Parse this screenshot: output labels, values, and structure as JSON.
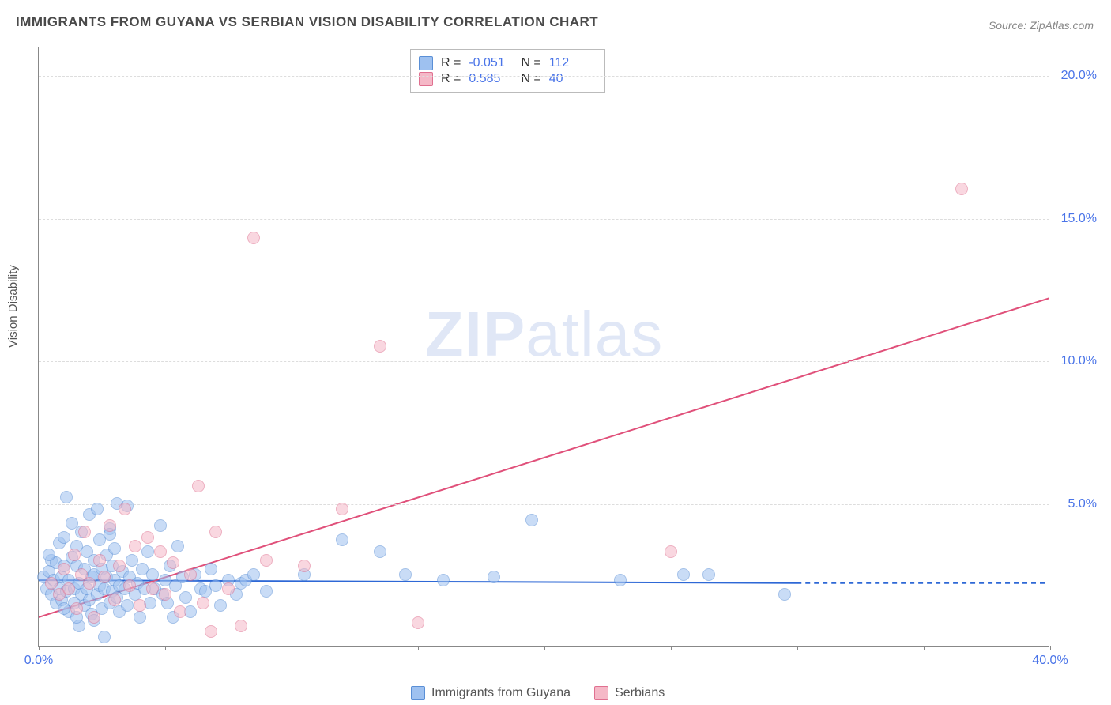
{
  "title": "IMMIGRANTS FROM GUYANA VS SERBIAN VISION DISABILITY CORRELATION CHART",
  "source_label": "Source: ",
  "source_name": "ZipAtlas.com",
  "ylabel": "Vision Disability",
  "watermark_bold": "ZIP",
  "watermark_thin": "atlas",
  "chart": {
    "type": "scatter",
    "background_color": "#ffffff",
    "grid_color": "#dddddd",
    "axis_color": "#888888",
    "value_color": "#4a74e8",
    "xlim": [
      0,
      40
    ],
    "ylim": [
      0,
      21
    ],
    "ytick_positions": [
      5,
      10,
      15,
      20
    ],
    "ytick_labels": [
      "5.0%",
      "10.0%",
      "15.0%",
      "20.0%"
    ],
    "xtick_positions": [
      0,
      5,
      10,
      15,
      20,
      25,
      30,
      35,
      40
    ],
    "xtick_labels_shown": {
      "0": "0.0%",
      "40": "40.0%"
    },
    "marker_radius": 8,
    "marker_opacity": 0.55,
    "series": [
      {
        "key": "guyana",
        "label": "Immigrants from Guyana",
        "fill": "#9ec1f0",
        "stroke": "#5a8fd6",
        "R": "-0.051",
        "N": "112",
        "trend": {
          "x1": 0,
          "y1": 2.3,
          "x2": 30,
          "y2": 2.2,
          "dash_after": 30,
          "x3": 40,
          "y3": 2.2,
          "color": "#2e68d6",
          "width": 2
        },
        "points": [
          [
            0.2,
            2.4
          ],
          [
            0.3,
            2.0
          ],
          [
            0.4,
            2.6
          ],
          [
            0.5,
            1.8
          ],
          [
            0.5,
            3.0
          ],
          [
            0.6,
            2.3
          ],
          [
            0.7,
            2.9
          ],
          [
            0.7,
            1.5
          ],
          [
            0.8,
            3.6
          ],
          [
            0.8,
            2.0
          ],
          [
            0.9,
            2.4
          ],
          [
            0.9,
            1.6
          ],
          [
            1.0,
            2.8
          ],
          [
            1.0,
            3.8
          ],
          [
            1.1,
            1.9
          ],
          [
            1.1,
            5.2
          ],
          [
            1.2,
            2.3
          ],
          [
            1.2,
            1.2
          ],
          [
            1.3,
            3.1
          ],
          [
            1.3,
            4.3
          ],
          [
            1.4,
            2.0
          ],
          [
            1.4,
            1.5
          ],
          [
            1.5,
            2.8
          ],
          [
            1.5,
            3.5
          ],
          [
            1.6,
            2.2
          ],
          [
            1.6,
            0.7
          ],
          [
            1.7,
            1.8
          ],
          [
            1.7,
            4.0
          ],
          [
            1.8,
            1.4
          ],
          [
            1.8,
            2.7
          ],
          [
            1.9,
            3.3
          ],
          [
            1.9,
            2.0
          ],
          [
            2.0,
            1.6
          ],
          [
            2.0,
            4.6
          ],
          [
            2.1,
            2.4
          ],
          [
            2.1,
            1.1
          ],
          [
            2.2,
            3.0
          ],
          [
            2.2,
            2.5
          ],
          [
            2.3,
            4.8
          ],
          [
            2.3,
            1.8
          ],
          [
            2.4,
            2.1
          ],
          [
            2.4,
            3.7
          ],
          [
            2.5,
            2.7
          ],
          [
            2.5,
            1.3
          ],
          [
            2.6,
            0.3
          ],
          [
            2.6,
            2.0
          ],
          [
            2.7,
            3.2
          ],
          [
            2.7,
            2.4
          ],
          [
            2.8,
            1.5
          ],
          [
            2.8,
            4.1
          ],
          [
            2.9,
            2.8
          ],
          [
            2.9,
            1.9
          ],
          [
            3.0,
            2.3
          ],
          [
            3.0,
            3.4
          ],
          [
            3.1,
            1.7
          ],
          [
            3.1,
            5.0
          ],
          [
            3.2,
            2.1
          ],
          [
            3.2,
            1.2
          ],
          [
            3.3,
            2.6
          ],
          [
            3.4,
            2.0
          ],
          [
            3.5,
            4.9
          ],
          [
            3.5,
            1.4
          ],
          [
            3.6,
            2.4
          ],
          [
            3.7,
            3.0
          ],
          [
            3.8,
            1.8
          ],
          [
            3.9,
            2.2
          ],
          [
            4.0,
            1.0
          ],
          [
            4.1,
            2.7
          ],
          [
            4.2,
            2.0
          ],
          [
            4.3,
            3.3
          ],
          [
            4.4,
            1.5
          ],
          [
            4.5,
            2.5
          ],
          [
            4.6,
            2.0
          ],
          [
            4.8,
            4.2
          ],
          [
            4.9,
            1.8
          ],
          [
            5.0,
            2.3
          ],
          [
            5.1,
            1.5
          ],
          [
            5.2,
            2.8
          ],
          [
            5.3,
            1.0
          ],
          [
            5.4,
            2.1
          ],
          [
            5.5,
            3.5
          ],
          [
            5.7,
            2.4
          ],
          [
            5.8,
            1.7
          ],
          [
            6.0,
            1.2
          ],
          [
            6.2,
            2.5
          ],
          [
            6.4,
            2.0
          ],
          [
            6.6,
            1.9
          ],
          [
            6.8,
            2.7
          ],
          [
            7.0,
            2.1
          ],
          [
            7.2,
            1.4
          ],
          [
            7.5,
            2.3
          ],
          [
            7.8,
            1.8
          ],
          [
            8.0,
            2.2
          ],
          [
            8.2,
            2.3
          ],
          [
            8.5,
            2.5
          ],
          [
            9.0,
            1.9
          ],
          [
            10.5,
            2.5
          ],
          [
            12.0,
            3.7
          ],
          [
            13.5,
            3.3
          ],
          [
            14.5,
            2.5
          ],
          [
            16.0,
            2.3
          ],
          [
            18.0,
            2.4
          ],
          [
            19.5,
            4.4
          ],
          [
            23.0,
            2.3
          ],
          [
            25.5,
            2.5
          ],
          [
            26.5,
            2.5
          ],
          [
            29.5,
            1.8
          ],
          [
            0.4,
            3.2
          ],
          [
            1.0,
            1.3
          ],
          [
            1.5,
            1.0
          ],
          [
            2.2,
            0.9
          ],
          [
            2.8,
            3.9
          ]
        ]
      },
      {
        "key": "serbians",
        "label": "Serbians",
        "fill": "#f5b8c7",
        "stroke": "#e07090",
        "R": "0.585",
        "N": "40",
        "trend": {
          "x1": 0,
          "y1": 1.0,
          "x2": 40,
          "y2": 12.2,
          "color": "#e0507a",
          "width": 2
        },
        "points": [
          [
            0.5,
            2.2
          ],
          [
            0.8,
            1.8
          ],
          [
            1.0,
            2.7
          ],
          [
            1.2,
            2.0
          ],
          [
            1.4,
            3.2
          ],
          [
            1.5,
            1.3
          ],
          [
            1.7,
            2.5
          ],
          [
            1.8,
            4.0
          ],
          [
            2.0,
            2.2
          ],
          [
            2.2,
            1.0
          ],
          [
            2.4,
            3.0
          ],
          [
            2.6,
            2.4
          ],
          [
            2.8,
            4.2
          ],
          [
            3.0,
            1.6
          ],
          [
            3.2,
            2.8
          ],
          [
            3.4,
            4.8
          ],
          [
            3.6,
            2.1
          ],
          [
            3.8,
            3.5
          ],
          [
            4.0,
            1.4
          ],
          [
            4.3,
            3.8
          ],
          [
            4.5,
            2.0
          ],
          [
            4.8,
            3.3
          ],
          [
            5.0,
            1.8
          ],
          [
            5.3,
            2.9
          ],
          [
            5.6,
            1.2
          ],
          [
            6.0,
            2.5
          ],
          [
            6.3,
            5.6
          ],
          [
            6.5,
            1.5
          ],
          [
            7.0,
            4.0
          ],
          [
            7.5,
            2.0
          ],
          [
            8.0,
            0.7
          ],
          [
            8.5,
            14.3
          ],
          [
            9.0,
            3.0
          ],
          [
            10.5,
            2.8
          ],
          [
            12.0,
            4.8
          ],
          [
            13.5,
            10.5
          ],
          [
            15.0,
            0.8
          ],
          [
            25.0,
            3.3
          ],
          [
            36.5,
            16.0
          ],
          [
            6.8,
            0.5
          ]
        ]
      }
    ]
  },
  "legend_title_R": "R = ",
  "legend_title_N": "N = "
}
